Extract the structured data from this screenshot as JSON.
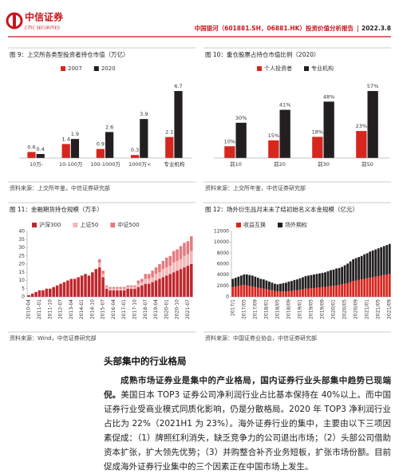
{
  "header": {
    "logo_cn": "中信证券",
    "logo_en": "CITIC SECURITIES",
    "report": "中国银河（601881.SH，06881.HK）投资价值分析报告",
    "date": "2022.3.8"
  },
  "chart_data": [
    {
      "type": "bar",
      "title": "图 9：上交所各类型投资者持仓市值（万亿）",
      "categories": [
        "10万-",
        "10-100万",
        "100-1000万",
        "1000万<",
        "专业机构"
      ],
      "series": [
        {
          "name": "2007",
          "color": "#d7261e",
          "values": [
            0.6,
            1.4,
            0.9,
            0.3,
            2.1
          ]
        },
        {
          "name": "2020",
          "color": "#231f20",
          "values": [
            0.4,
            1.9,
            2.6,
            3.9,
            6.7
          ]
        }
      ]
    },
    {
      "type": "bar",
      "title": "图 10：重仓股票占持仓市值比例（2020）",
      "categories": [
        "前10",
        "前20",
        "前30",
        "前50"
      ],
      "series": [
        {
          "name": "个人投资者",
          "color": "#d7261e",
          "values": [
            10,
            15,
            18,
            23
          ],
          "value_labels": [
            "10%",
            "15%",
            "18%",
            "23%"
          ]
        },
        {
          "name": "专业机构",
          "color": "#231f20",
          "values": [
            30,
            41,
            48,
            57
          ],
          "value_labels": [
            "30%",
            "41%",
            "48%",
            "57%"
          ]
        }
      ]
    },
    {
      "type": "stacked_bar",
      "title": "图 11：金融期货持仓规模（万手）",
      "categories": [
        "2010-04",
        null,
        null,
        "2011-01",
        null,
        null,
        "2011-10",
        null,
        null,
        "2012-07",
        null,
        null,
        "2013-04",
        null,
        null,
        "2014-01",
        null,
        null,
        "2014-10",
        null,
        null,
        "2015-07",
        null,
        null,
        "2016-04",
        null,
        null,
        "2017-01",
        null,
        null,
        "2017-10",
        null,
        null,
        "2018-07",
        null,
        null,
        "2019-04",
        null,
        null,
        "2020-01",
        null,
        null,
        "2020-10",
        null,
        null,
        "2021-07",
        null
      ],
      "series": [
        {
          "name": "沪深300",
          "color": "#c0272d",
          "values": [
            1,
            2,
            3,
            4,
            4,
            5,
            5,
            6,
            7,
            8,
            9,
            10,
            11,
            11,
            12,
            13,
            14,
            13,
            15,
            17,
            18,
            12,
            5,
            4,
            4,
            4,
            4,
            4,
            5,
            5,
            5,
            6,
            7,
            8,
            8,
            9,
            10,
            11,
            12,
            13,
            14,
            15,
            16,
            17,
            18,
            19,
            20
          ]
        },
        {
          "name": "上证50",
          "color": "#f3b6b6",
          "values": [
            0,
            0,
            0,
            0,
            0,
            0,
            0,
            0,
            0,
            0,
            0,
            0,
            0,
            0,
            0,
            0,
            0,
            0,
            0,
            0,
            3,
            2,
            1,
            1,
            1,
            1,
            1,
            1,
            1,
            1,
            1,
            2,
            2,
            3,
            3,
            3,
            4,
            4,
            5,
            5,
            5,
            6,
            6,
            6,
            7,
            7,
            8
          ]
        },
        {
          "name": "中证500",
          "color": "#e47b80",
          "values": [
            0,
            0,
            0,
            0,
            0,
            0,
            0,
            0,
            0,
            0,
            0,
            0,
            0,
            0,
            0,
            0,
            0,
            0,
            0,
            0,
            2,
            2,
            1,
            1,
            1,
            1,
            1,
            1,
            1,
            1,
            1,
            2,
            2,
            3,
            3,
            4,
            4,
            5,
            5,
            6,
            6,
            7,
            7,
            8,
            8,
            8,
            9
          ]
        }
      ],
      "ylim": [
        0,
        40
      ],
      "yticks": [
        0,
        5,
        10,
        15,
        20,
        25,
        30,
        35,
        40
      ]
    },
    {
      "type": "stacked_bar",
      "title": "图 12：场外衍生品月末未了结初始名义本金规模（亿元）",
      "categories": [
        "2017/1",
        null,
        null,
        null,
        "2017/05",
        null,
        null,
        null,
        "2017/09",
        null,
        null,
        null,
        "2018/01",
        null,
        null,
        null,
        "2018/05",
        null,
        null,
        null,
        "2018/09",
        null,
        null,
        null,
        "2019/01",
        null,
        null,
        null,
        "2019/05",
        null,
        null,
        null,
        "2019/09",
        null,
        null,
        null,
        "2020/01",
        null,
        null,
        null,
        "2020/05",
        null,
        null,
        null,
        "2020/09",
        null,
        null,
        null,
        "2021/01",
        null,
        null,
        null,
        "2021/05",
        null,
        null,
        null,
        "2021/09"
      ],
      "series": [
        {
          "name": "收益互换",
          "color": "#d7261e",
          "values": [
            1800,
            1900,
            2000,
            2100,
            2200,
            2100,
            2000,
            1900,
            1800,
            1700,
            1600,
            1500,
            1400,
            1300,
            1200,
            1100,
            1000,
            1000,
            1000,
            1000,
            1100,
            1100,
            1200,
            1200,
            1300,
            1400,
            1500,
            1500,
            1600,
            1600,
            1700,
            1700,
            1800,
            1800,
            1900,
            2000,
            2000,
            2100,
            2200,
            2300,
            2400,
            2500,
            2700,
            2900,
            3000,
            3100,
            3200,
            3300,
            3400,
            3500,
            3600,
            3700,
            3800,
            3900,
            4000,
            4100,
            4200
          ]
        },
        {
          "name": "场外期权",
          "color": "#231f20",
          "values": [
            1500,
            1600,
            1700,
            1800,
            1900,
            2000,
            2000,
            2000,
            1900,
            1800,
            1700,
            1700,
            1600,
            1500,
            1400,
            1300,
            1300,
            1400,
            1500,
            1600,
            1700,
            1800,
            1900,
            2000,
            2100,
            2200,
            2300,
            2400,
            2400,
            2500,
            2500,
            2600,
            2600,
            2700,
            2800,
            2900,
            3000,
            3100,
            3100,
            3200,
            3400,
            3600,
            3800,
            4000,
            4100,
            4200,
            4300,
            4500,
            4600,
            4800,
            4900,
            5000,
            5100,
            5200,
            5300,
            5400,
            5500
          ]
        }
      ],
      "ylim": [
        0,
        12000
      ],
      "yticks": [
        0,
        2000,
        4000,
        6000,
        8000,
        10000,
        12000
      ]
    }
  ],
  "sources": [
    "资料来源：上交所年鉴，中信证券研究部",
    "资料来源：上交所年鉴，中信证券研究部",
    "资料来源：Wind，中信证券研究部",
    "资料来源：中国证券业协会，中信证券研究部"
  ],
  "section": {
    "heading": "头部集中的行业格局",
    "lead": "成熟市场证券业是集中的产业格局，国内证券行业头部集中趋势已现端倪。",
    "body": "美国日本 TOP3 证券公司净利润行业占比基本保持在 40%以上。而中国证券行业受商业模式同质化影响，仍是分散格局。2020 年 TOP3 净利润行业占比为 22%（2021H1 为 23%）。海外证券行业的集中，主要由以下三项因素促成：（1）牌照红利消失，缺乏竞争力的公司退出市场；（2）头部公司借助资本扩张，扩大领先优势；（3）并购整合补齐业务短板，扩张市场份额。目前促成海外证券行业集中的三个因素正在中国市场上发生。"
  }
}
